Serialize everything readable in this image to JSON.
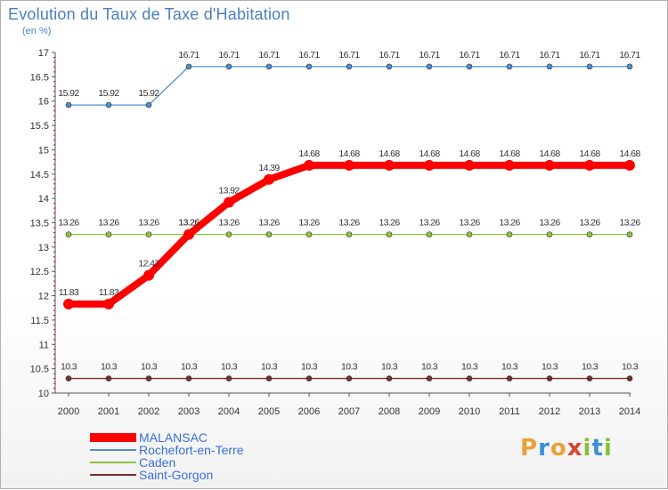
{
  "title": "Evolution du Taux de Taxe d'Habitation",
  "subtitle": "(en %)",
  "logo": {
    "letters": [
      "P",
      "r",
      "o",
      "x",
      "i",
      "t",
      "i"
    ],
    "colors": [
      "#e8a23a",
      "#3a8fd6",
      "#e8a23a",
      "#d9462c",
      "#8abf3a",
      "#3a8fd6",
      "#8abf3a"
    ]
  },
  "chart_data": {
    "type": "line",
    "title": "Evolution du Taux de Taxe d'Habitation",
    "ylabel": "(en %)",
    "xlabel": "",
    "ylim": [
      10,
      17
    ],
    "yticks": [
      "10",
      "10.5",
      "11",
      "11.5",
      "12",
      "12.5",
      "13",
      "13.5",
      "14",
      "14.5",
      "15",
      "15.5",
      "16",
      "16.5",
      "17"
    ],
    "x": [
      "2000",
      "2001",
      "2002",
      "2003",
      "2004",
      "2005",
      "2006",
      "2007",
      "2008",
      "2009",
      "2010",
      "2011",
      "2012",
      "2013",
      "2014"
    ],
    "series": [
      {
        "name": "Rochefort-en-Terre",
        "color": "#4f8fcb",
        "values": [
          15.92,
          15.92,
          15.92,
          16.71,
          16.71,
          16.71,
          16.71,
          16.71,
          16.71,
          16.71,
          16.71,
          16.71,
          16.71,
          16.71,
          16.71
        ],
        "labels": [
          "15.92",
          "15.92",
          "15.92",
          "16.71",
          "16.71",
          "16.71",
          "16.71",
          "16.71",
          "16.71",
          "16.71",
          "16.71",
          "16.71",
          "16.71",
          "16.71",
          "16.71"
        ]
      },
      {
        "name": "Caden",
        "color": "#8cc63f",
        "values": [
          13.26,
          13.26,
          13.26,
          13.26,
          13.26,
          13.26,
          13.26,
          13.26,
          13.26,
          13.26,
          13.26,
          13.26,
          13.26,
          13.26,
          13.26
        ],
        "labels": [
          "13.26",
          "13.26",
          "13.26",
          "13.26",
          "13.26",
          "13.26",
          "13.26",
          "13.26",
          "13.26",
          "13.26",
          "13.26",
          "13.26",
          "13.26",
          "13.26",
          "13.26"
        ]
      },
      {
        "name": "Saint-Gorgon",
        "color": "#7a2e2e",
        "values": [
          10.3,
          10.3,
          10.3,
          10.3,
          10.3,
          10.3,
          10.3,
          10.3,
          10.3,
          10.3,
          10.3,
          10.3,
          10.3,
          10.3,
          10.3
        ],
        "labels": [
          "10.3",
          "10.3",
          "10.3",
          "10.3",
          "10.3",
          "10.3",
          "10.3",
          "10.3",
          "10.3",
          "10.3",
          "10.3",
          "10.3",
          "10.3",
          "10.3",
          "10.3"
        ]
      },
      {
        "name": "MALANSAC",
        "color": "#ff0000",
        "values": [
          11.83,
          11.83,
          12.42,
          13.26,
          13.92,
          14.39,
          14.68,
          14.68,
          14.68,
          14.68,
          14.68,
          14.68,
          14.68,
          14.68,
          14.68
        ],
        "labels": [
          "11.83",
          "11.83",
          "12.42",
          "13.26",
          "13.92",
          "14.39",
          "14.68",
          "14.68",
          "14.68",
          "14.68",
          "14.68",
          "14.68",
          "14.68",
          "14.68",
          "14.68"
        ]
      }
    ],
    "legend": [
      "MALANSAC",
      "Rochefort-en-Terre",
      "Caden",
      "Saint-Gorgon"
    ],
    "legend_position": "bottom-left"
  }
}
